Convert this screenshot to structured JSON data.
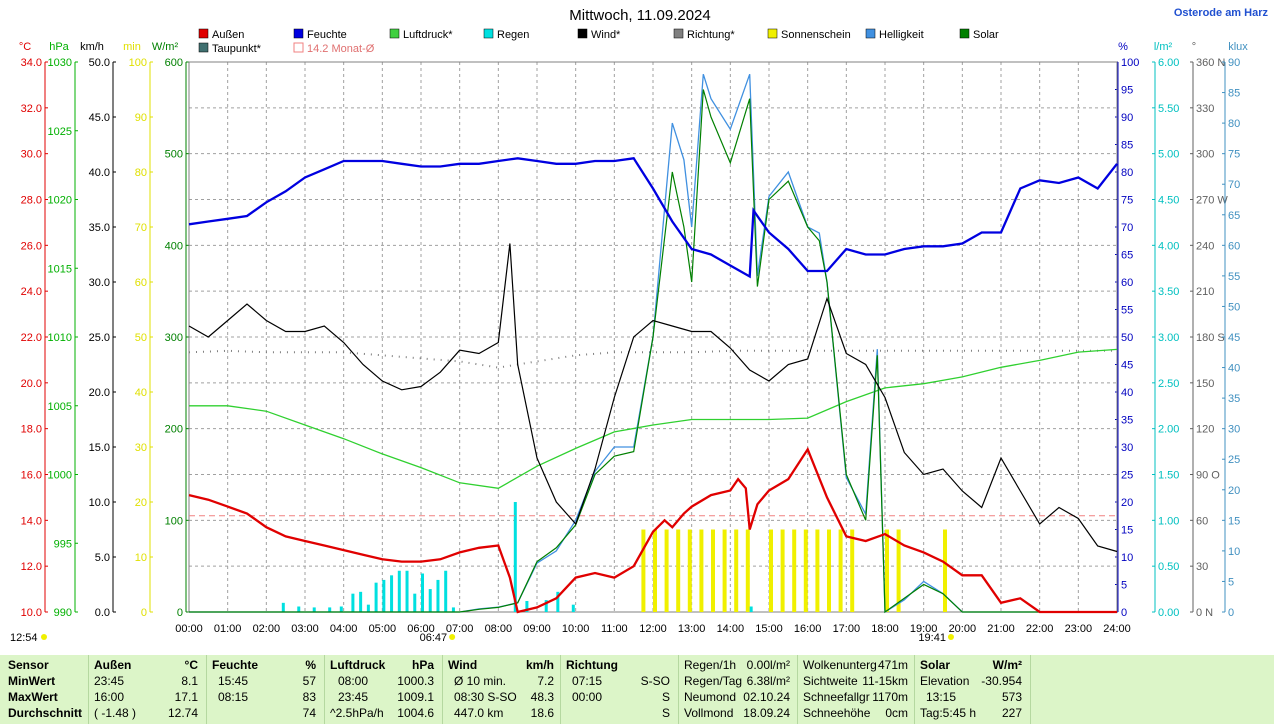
{
  "header": {
    "title": "Mittwoch, 11.09.2024",
    "station": "Osterode am Harz"
  },
  "legend": [
    {
      "label": "Außen",
      "color": "#e00000"
    },
    {
      "label": "Feuchte",
      "color": "#0000e0"
    },
    {
      "label": "Luftdruck*",
      "color": "#40d040"
    },
    {
      "label": "Regen",
      "color": "#00e0e0"
    },
    {
      "label": "Wind*",
      "color": "#000000"
    },
    {
      "label": "Richtung*",
      "color": "#808080"
    },
    {
      "label": "Sonnenschein",
      "color": "#f0f000"
    },
    {
      "label": "Helligkeit",
      "color": "#4090e0"
    },
    {
      "label": "Solar",
      "color": "#008000"
    },
    {
      "label": "Taupunkt*",
      "color": "#407070"
    },
    {
      "label": "14.2 Monat-Ø",
      "color": "#f08080"
    }
  ],
  "axes": {
    "left": [
      {
        "unit": "°C",
        "color": "#e00000",
        "ticks": [
          "34.0",
          "32.0",
          "30.0",
          "28.0",
          "26.0",
          "24.0",
          "22.0",
          "20.0",
          "18.0",
          "16.0",
          "14.0",
          "12.0",
          "10.0"
        ]
      },
      {
        "unit": "hPa",
        "color": "#00b000",
        "ticks": [
          "1030",
          "1025",
          "1020",
          "1015",
          "1010",
          "1005",
          "1000",
          "995",
          "990"
        ]
      },
      {
        "unit": "km/h",
        "color": "#000000",
        "ticks": [
          "50.0",
          "45.0",
          "40.0",
          "35.0",
          "30.0",
          "25.0",
          "20.0",
          "15.0",
          "10.0",
          "5.0",
          "0.0"
        ]
      },
      {
        "unit": "min",
        "color": "#e0e000",
        "ticks": [
          "100",
          "90",
          "80",
          "70",
          "60",
          "50",
          "40",
          "30",
          "20",
          "10",
          "0"
        ]
      },
      {
        "unit": "W/m²",
        "color": "#008000",
        "ticks": [
          "600",
          "500",
          "400",
          "300",
          "200",
          "100",
          "0"
        ]
      }
    ],
    "right": [
      {
        "unit": "%",
        "color": "#0000c0",
        "ticks": [
          "100",
          "95",
          "90",
          "85",
          "80",
          "75",
          "70",
          "65",
          "60",
          "55",
          "50",
          "45",
          "40",
          "35",
          "30",
          "25",
          "20",
          "15",
          "10",
          "5",
          "0"
        ]
      },
      {
        "unit": "l/m²",
        "color": "#00c0c0",
        "ticks": [
          "6.00",
          "5.50",
          "5.00",
          "4.50",
          "4.00",
          "3.50",
          "3.00",
          "2.50",
          "2.00",
          "1.50",
          "1.00",
          "0.50",
          "0.00"
        ]
      },
      {
        "unit": "°",
        "color": "#606060",
        "ticks": [
          "360 N",
          "330",
          "300",
          "270 W",
          "240",
          "210",
          "180 S",
          "150",
          "120",
          "90 O",
          "60",
          "30",
          "0 N"
        ]
      },
      {
        "unit": "klux",
        "color": "#4090c0",
        "ticks": [
          "90",
          "85",
          "80",
          "75",
          "70",
          "65",
          "60",
          "55",
          "50",
          "45",
          "40",
          "35",
          "30",
          "25",
          "20",
          "15",
          "10",
          "5",
          "0"
        ]
      }
    ],
    "x_ticks": [
      "00:00",
      "01:00",
      "02:00",
      "03:00",
      "04:00",
      "05:00",
      "06:00",
      "07:00",
      "08:00",
      "09:00",
      "10:00",
      "11:00",
      "12:00",
      "13:00",
      "14:00",
      "15:00",
      "16:00",
      "17:00",
      "18:00",
      "19:00",
      "20:00",
      "21:00",
      "22:00",
      "23:00",
      "24:00"
    ],
    "markers": {
      "now": "12:54",
      "sunrise": "06:47",
      "sunset": "19:41"
    }
  },
  "chart_data": {
    "type": "line",
    "title": "Mittwoch, 11.09.2024",
    "x_unit": "hours",
    "xlim": [
      0,
      24
    ],
    "grid": true,
    "series": [
      {
        "name": "Außen",
        "unit": "°C",
        "ylim": [
          10,
          34
        ],
        "x": [
          0,
          0.5,
          1,
          1.5,
          2,
          2.5,
          3,
          3.5,
          4,
          4.5,
          5,
          5.5,
          6,
          6.5,
          7,
          7.5,
          8,
          8.3,
          8.5,
          9,
          9.5,
          10,
          10.5,
          11,
          11.5,
          12,
          12.3,
          12.5,
          12.8,
          13,
          13.5,
          14,
          14.2,
          14.4,
          14.5,
          14.7,
          15,
          15.5,
          16,
          16.5,
          17,
          17.5,
          18,
          18.5,
          19,
          19.5,
          20,
          20.5,
          21,
          21.5,
          22,
          22.5,
          23,
          23.5,
          24
        ],
        "y": [
          15.1,
          14.9,
          14.6,
          14.3,
          13.7,
          13.3,
          13.1,
          12.9,
          12.7,
          12.5,
          12.3,
          12.2,
          12.2,
          12.3,
          12.6,
          12.8,
          12.9,
          11.5,
          10,
          10.2,
          10.6,
          11.5,
          11.7,
          11.5,
          12,
          13.5,
          14,
          13.7,
          14.3,
          14.6,
          15.1,
          15.3,
          15.8,
          15.4,
          13.6,
          14.7,
          15.3,
          15.8,
          17.1,
          15,
          13.3,
          13.1,
          13.4,
          12.9,
          12.6,
          12.2,
          11.6,
          11.6,
          10.4,
          10.6,
          10,
          10,
          10,
          10,
          10
        ]
      },
      {
        "name": "Feuchte",
        "unit": "%",
        "ylim": [
          0,
          100
        ],
        "x": [
          0,
          0.5,
          1,
          1.5,
          2,
          2.5,
          3,
          3.5,
          4,
          4.5,
          5,
          5.5,
          6,
          6.5,
          7,
          7.5,
          8,
          8.5,
          9,
          9.5,
          10,
          10.5,
          11,
          11.5,
          12,
          12.5,
          13,
          13.5,
          14,
          14.5,
          14.6,
          15,
          15.5,
          16,
          16.5,
          17,
          17.5,
          18,
          18.5,
          19,
          19.5,
          20,
          20.5,
          21,
          21.5,
          22,
          22.5,
          23,
          23.5,
          24
        ],
        "y": [
          70.5,
          71,
          71.5,
          72,
          74.5,
          76.5,
          79,
          80.5,
          82,
          82,
          82,
          81.5,
          81,
          81,
          81.5,
          81.5,
          82,
          82.5,
          82,
          81.5,
          81.5,
          82,
          82,
          82.5,
          77,
          71,
          66,
          65,
          63,
          61,
          73,
          69,
          66,
          62,
          62,
          66,
          65,
          65,
          66,
          66.5,
          66.5,
          67,
          69,
          69,
          77,
          78.5,
          78,
          79,
          77,
          81.5
        ]
      },
      {
        "name": "Luftdruck*",
        "unit": "hPa",
        "ylim": [
          990,
          1030
        ],
        "x": [
          0,
          1,
          2,
          3,
          4,
          5,
          6,
          7,
          8,
          9,
          10,
          11,
          12,
          13,
          14,
          15,
          16,
          17,
          18,
          19,
          20,
          21,
          22,
          23,
          24
        ],
        "y": [
          1005,
          1005,
          1004.6,
          1003.6,
          1002.6,
          1001.5,
          1000.5,
          999.4,
          999.0,
          1000.6,
          1001.9,
          1003.1,
          1003.6,
          1004.0,
          1004.0,
          1004.0,
          1004.1,
          1005.3,
          1006.3,
          1006.6,
          1007.1,
          1007.8,
          1008.3,
          1008.9,
          1009.1
        ]
      },
      {
        "name": "Wind*",
        "unit": "km/h",
        "ylim": [
          0,
          50
        ],
        "x": [
          0,
          0.5,
          1,
          1.5,
          2,
          2.5,
          3,
          3.5,
          4,
          4.5,
          5,
          5.5,
          6,
          6.5,
          7,
          7.5,
          8,
          8.3,
          8.5,
          9,
          9.5,
          10,
          10.5,
          11,
          11.5,
          12,
          12.5,
          13,
          13.5,
          14,
          14.5,
          15,
          15.5,
          16,
          16.5,
          17,
          17.5,
          18,
          18.5,
          19,
          19.5,
          20,
          20.5,
          21,
          21.5,
          22,
          22.5,
          23,
          23.5,
          24
        ],
        "y": [
          26,
          25,
          26.5,
          28,
          26.5,
          25.5,
          25.5,
          26,
          24.5,
          22.5,
          21,
          20.2,
          20.5,
          21.8,
          23.8,
          23.5,
          24.5,
          33.5,
          22.5,
          14,
          10,
          8,
          13,
          19.5,
          25,
          26.5,
          26,
          25.5,
          25.5,
          24,
          22,
          21,
          22.5,
          23,
          28.5,
          23.5,
          22.5,
          19.5,
          14.5,
          12.5,
          13,
          11,
          9.5,
          14,
          11,
          8,
          9.5,
          8.5,
          6,
          5.5
        ]
      },
      {
        "name": "Helligkeit",
        "unit": "klux",
        "ylim": [
          0,
          90
        ],
        "x": [
          0,
          1,
          2,
          3,
          4,
          5,
          6,
          7,
          7.5,
          8,
          8.5,
          9,
          9.5,
          10,
          10.5,
          11,
          11.5,
          12,
          12.5,
          12.8,
          13,
          13.3,
          13.5,
          14,
          14.5,
          14.7,
          15,
          15.5,
          16,
          16.3,
          16.5,
          17,
          17.5,
          17.8,
          18,
          18.5,
          19,
          19.5,
          20,
          21,
          22,
          23,
          24
        ],
        "y": [
          0,
          0,
          0,
          0,
          0,
          0,
          0,
          0,
          0.5,
          0.8,
          1.5,
          8,
          10,
          15,
          23,
          27,
          27,
          45,
          80,
          74,
          63,
          88,
          84,
          79,
          88,
          55,
          68,
          72,
          63,
          62,
          54,
          22,
          16,
          43,
          0,
          2,
          5,
          3,
          0,
          0,
          0,
          0,
          0
        ]
      },
      {
        "name": "Solar",
        "unit": "W/m²",
        "ylim": [
          0,
          600
        ],
        "x": [
          0,
          1,
          2,
          3,
          4,
          5,
          6,
          7,
          7.5,
          8,
          8.5,
          9,
          9.5,
          10,
          10.5,
          11,
          11.5,
          12,
          12.5,
          12.8,
          13,
          13.3,
          13.5,
          14,
          14.5,
          14.7,
          15,
          15.5,
          16,
          16.3,
          16.5,
          17,
          17.5,
          17.8,
          18,
          18.5,
          19,
          19.5,
          20,
          21,
          22,
          23,
          24
        ],
        "y": [
          0,
          0,
          0,
          0,
          0,
          0,
          0,
          0,
          3,
          5,
          10,
          55,
          70,
          95,
          150,
          170,
          175,
          300,
          480,
          420,
          360,
          570,
          540,
          490,
          560,
          355,
          450,
          470,
          420,
          405,
          360,
          150,
          100,
          280,
          0,
          15,
          30,
          20,
          0,
          0,
          0,
          0,
          0
        ]
      },
      {
        "name": "Regen",
        "unit": "l/m²",
        "ylim": [
          0,
          6
        ],
        "x": [
          2.4,
          2.8,
          3.2,
          3.6,
          3.9,
          4.2,
          4.4,
          4.6,
          4.8,
          5.0,
          5.2,
          5.4,
          5.6,
          5.8,
          6.0,
          6.2,
          6.4,
          6.6,
          6.8,
          8.4,
          8.7,
          9.2,
          9.5,
          9.9,
          14.5
        ],
        "y": [
          0.1,
          0.06,
          0.05,
          0.05,
          0.06,
          0.2,
          0.22,
          0.08,
          0.32,
          0.35,
          0.4,
          0.45,
          0.45,
          0.2,
          0.42,
          0.25,
          0.35,
          0.45,
          0.05,
          1.2,
          0.12,
          0.13,
          0.22,
          0.08,
          0.06
        ]
      },
      {
        "name": "Sonnenschein",
        "unit": "min",
        "ylim": [
          0,
          100
        ],
        "x": [
          11.7,
          12,
          12.3,
          12.6,
          12.9,
          13.2,
          13.5,
          13.8,
          14.1,
          14.4,
          14.7,
          15,
          15.3,
          15.6,
          15.9,
          16.2,
          16.5,
          16.8,
          17.1,
          17.4,
          17.7,
          18,
          18.3,
          18.6,
          18.9,
          19.2,
          19.5
        ],
        "y": [
          15,
          15,
          15,
          15,
          15,
          15,
          15,
          15,
          15,
          15,
          0,
          15,
          15,
          15,
          15,
          15,
          15,
          15,
          15,
          0,
          0,
          15,
          15,
          0,
          0,
          0,
          15
        ]
      },
      {
        "name": "Richtung*",
        "unit": "°",
        "ylim": [
          0,
          360
        ],
        "x": [
          0,
          1,
          2,
          3,
          4,
          5,
          6,
          7,
          8,
          9,
          10,
          11,
          12,
          13,
          14,
          15,
          16,
          17,
          18,
          19,
          20,
          21,
          22,
          23,
          24
        ],
        "y": [
          170,
          171,
          170,
          170,
          170,
          168,
          166,
          164,
          160,
          164,
          168,
          170,
          170,
          170,
          171,
          171,
          171,
          171,
          171,
          171,
          171,
          171,
          171,
          171,
          171
        ]
      },
      {
        "name": "14.2 Monat-Ø",
        "unit": "°C",
        "ylim": [
          10,
          34
        ],
        "x": [
          0,
          24
        ],
        "y": [
          14.2,
          14.2
        ]
      }
    ]
  },
  "footer": {
    "sensor": {
      "header": "Sensor",
      "rows": [
        "MinWert",
        "MaxWert",
        "Durchschnitt"
      ]
    },
    "aussen": {
      "header": "Außen",
      "unit": "°C",
      "times": [
        "23:45",
        "16:00",
        "( -1.48 )"
      ],
      "values": [
        "8.1",
        "17.1",
        "12.74"
      ]
    },
    "feuchte": {
      "header": "Feuchte",
      "unit": "%",
      "times": [
        "15:45",
        "08:15",
        ""
      ],
      "values": [
        "57",
        "83",
        "74"
      ]
    },
    "luftdruck": {
      "header": "Luftdruck",
      "unit": "hPa",
      "times": [
        "08:00",
        "23:45",
        "^2.5hPa/h"
      ],
      "values": [
        "1000.3",
        "1009.1",
        "1004.6"
      ]
    },
    "wind": {
      "header": "Wind",
      "unit": "km/h",
      "times": [
        "Ø 10 min.",
        "08:30   S-SO",
        "447.0 km"
      ],
      "values": [
        "7.2",
        "48.3",
        "18.6"
      ]
    },
    "richtung": {
      "header": "Richtung",
      "times": [
        "07:15",
        "00:00",
        ""
      ],
      "values": [
        "S-SO",
        "S",
        "S"
      ]
    },
    "regen": {
      "labels": [
        "Regen/1h",
        "Regen/Tag",
        "Neumond",
        "Vollmond"
      ],
      "values": [
        "0.00l/m²",
        "6.38l/m²",
        "02.10.24",
        "18.09.24"
      ]
    },
    "wolken": {
      "labels": [
        "Wolkenunterg",
        "Sichtweite",
        "Schneefallgr",
        "Schneehöhe"
      ],
      "values": [
        "471m",
        "11-15km",
        "1170m",
        "0cm"
      ]
    },
    "solar": {
      "header": "Solar",
      "unit": "W/m²",
      "labels": [
        "Elevation",
        "13:15",
        "Tag:5:45 h"
      ],
      "values": [
        "-30.954",
        "573",
        "227"
      ]
    }
  }
}
